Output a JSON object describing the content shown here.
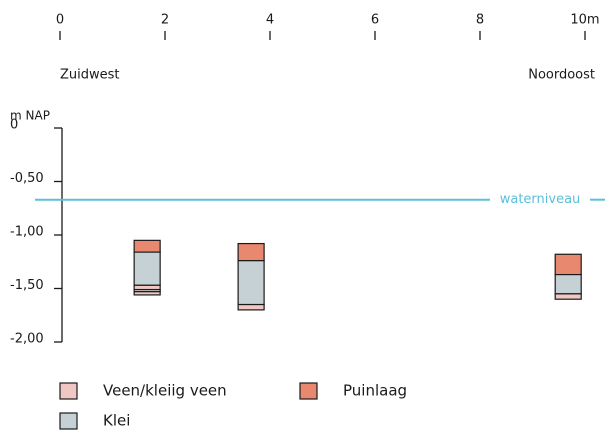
{
  "chart_data": {
    "type": "profile",
    "xlim": [
      0,
      10
    ],
    "xticks": [
      0,
      2,
      4,
      6,
      8,
      {
        "value": 10,
        "label": "10m"
      }
    ],
    "left_label": "Zuidwest",
    "right_label": "Noordoost",
    "y_label": "m NAP",
    "ylim": [
      -2,
      0
    ],
    "yticks": [
      {
        "value": 0,
        "label": "0"
      },
      {
        "value": -0.5,
        "label": "-0,50"
      },
      {
        "value": -1,
        "label": "-1,00"
      },
      {
        "value": -1.5,
        "label": "-1,50"
      },
      {
        "value": -2,
        "label": "-2,00"
      }
    ],
    "water": {
      "label": "waterniveau",
      "value": -0.67,
      "color": "#5bc0d8"
    },
    "series": [
      {
        "name": "Veen/kleiig veen",
        "color": "#f1c7c4"
      },
      {
        "name": "Puinlaag",
        "color": "#e8896f"
      },
      {
        "name": "Klei",
        "color": "#c6d1d5"
      }
    ],
    "boreholes": [
      {
        "x": 1.66,
        "layers": [
          {
            "series": 1,
            "top": -1.05,
            "bottom": -1.16
          },
          {
            "series": 2,
            "top": -1.16,
            "bottom": -1.47
          },
          {
            "series": 0,
            "top": -1.47,
            "bottom": -1.51
          },
          {
            "series": 2,
            "top": -1.51,
            "bottom": -1.53
          },
          {
            "series": 0,
            "top": -1.53,
            "bottom": -1.56
          }
        ]
      },
      {
        "x": 3.64,
        "layers": [
          {
            "series": 1,
            "top": -1.08,
            "bottom": -1.24
          },
          {
            "series": 2,
            "top": -1.24,
            "bottom": -1.65
          },
          {
            "series": 0,
            "top": -1.65,
            "bottom": -1.7
          }
        ]
      },
      {
        "x": 9.68,
        "layers": [
          {
            "series": 1,
            "top": -1.18,
            "bottom": -1.37
          },
          {
            "series": 2,
            "top": -1.37,
            "bottom": -1.55
          },
          {
            "series": 0,
            "top": -1.55,
            "bottom": -1.6
          }
        ]
      }
    ]
  }
}
